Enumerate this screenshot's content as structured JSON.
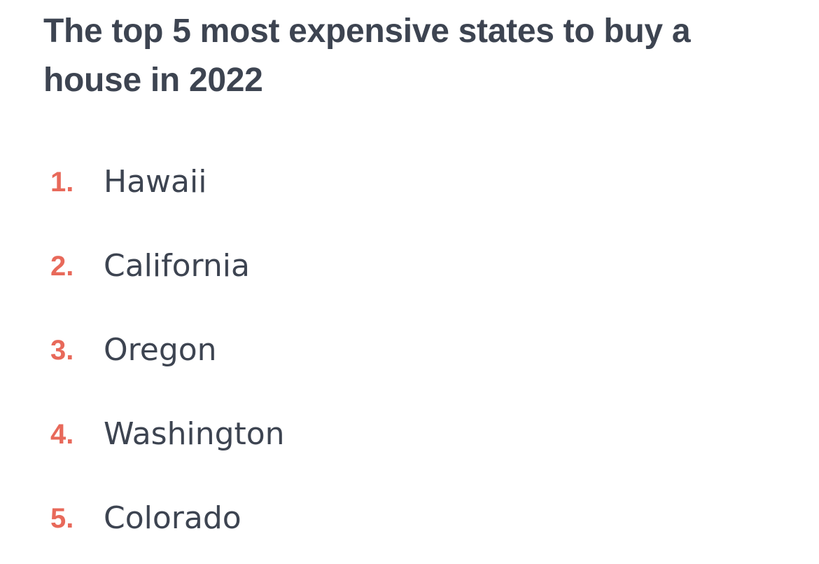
{
  "title": "The top 5 most expensive states to buy a house in 2022",
  "list": [
    {
      "marker": "1.",
      "text": "Hawaii"
    },
    {
      "marker": "2.",
      "text": "California"
    },
    {
      "marker": "3.",
      "text": "Oregon"
    },
    {
      "marker": "4.",
      "text": "Washington"
    },
    {
      "marker": "5.",
      "text": "Colorado"
    }
  ]
}
